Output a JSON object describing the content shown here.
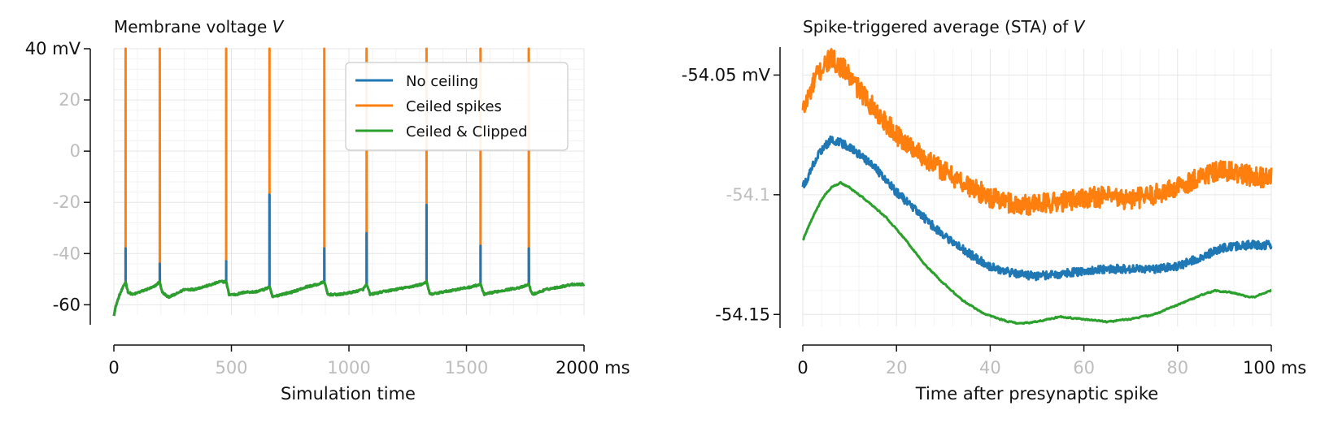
{
  "colors": {
    "no_ceiling": "#1f77b4",
    "ceiled_spikes": "#ff7f0e",
    "ceiled_clipped": "#2ca02c",
    "grid": "#e6e6e6",
    "minor_grid": "#f3f3f3",
    "tick_label_dim": "#bdbdbd",
    "text": "#111111"
  },
  "chart_data": [
    {
      "type": "line",
      "title": "Membrane voltage ",
      "title_var": "V",
      "xlabel": "Simulation time",
      "ylabel": "",
      "xlim": [
        0,
        2000
      ],
      "ylim": [
        -64,
        40
      ],
      "x_unit": "ms",
      "y_unit": "mV",
      "x_ticks": [
        {
          "value": 0,
          "label": "0",
          "dim": false
        },
        {
          "value": 500,
          "label": "500",
          "dim": true
        },
        {
          "value": 1000,
          "label": "1000",
          "dim": true
        },
        {
          "value": 1500,
          "label": "1500",
          "dim": true
        },
        {
          "value": 2000,
          "label": "2000 ms",
          "dim": false
        }
      ],
      "y_ticks": [
        {
          "value": 40,
          "label": "40 mV",
          "dim": false
        },
        {
          "value": 20,
          "label": "20",
          "dim": true
        },
        {
          "value": 0,
          "label": "0",
          "dim": true
        },
        {
          "value": -20,
          "label": "-20",
          "dim": true
        },
        {
          "value": -40,
          "label": "-40",
          "dim": true
        },
        {
          "value": -60,
          "label": "-60",
          "dim": false
        }
      ],
      "grid": true,
      "legend_position": "top-right",
      "spikes": [
        {
          "t": 50,
          "peak_no_ceiling": -38
        },
        {
          "t": 195,
          "peak_no_ceiling": -44
        },
        {
          "t": 478,
          "peak_no_ceiling": -43
        },
        {
          "t": 662,
          "peak_no_ceiling": -17
        },
        {
          "t": 895,
          "peak_no_ceiling": -38
        },
        {
          "t": 1075,
          "peak_no_ceiling": -32
        },
        {
          "t": 1330,
          "peak_no_ceiling": -21
        },
        {
          "t": 1560,
          "peak_no_ceiling": -37
        },
        {
          "t": 1765,
          "peak_no_ceiling": -38
        }
      ],
      "spike_ceiling": 40,
      "baseline": {
        "t": [
          0,
          10,
          25,
          40,
          50,
          60,
          80,
          110,
          140,
          170,
          195,
          205,
          230,
          260,
          300,
          340,
          380,
          420,
          450,
          478,
          490,
          520,
          560,
          600,
          640,
          662,
          675,
          710,
          760,
          820,
          870,
          895,
          910,
          960,
          1020,
          1060,
          1075,
          1090,
          1140,
          1200,
          1260,
          1310,
          1330,
          1345,
          1400,
          1460,
          1520,
          1560,
          1575,
          1620,
          1680,
          1740,
          1765,
          1780,
          1840,
          1900,
          1950,
          2000
        ],
        "v": [
          -64,
          -60,
          -56,
          -53,
          -51,
          -55,
          -56,
          -55,
          -54,
          -53,
          -51,
          -55,
          -57,
          -56,
          -54,
          -54,
          -53,
          -52,
          -51,
          -51,
          -56,
          -56,
          -55,
          -55,
          -54,
          -53,
          -57,
          -56,
          -55,
          -53,
          -52,
          -51,
          -56,
          -56,
          -55,
          -54,
          -52,
          -56,
          -55,
          -54,
          -53,
          -52,
          -51,
          -56,
          -55,
          -54,
          -53,
          -52,
          -56,
          -55,
          -54,
          -53,
          -52,
          -56,
          -54,
          -53,
          -52,
          -52
        ]
      },
      "series": [
        {
          "name": "No ceiling",
          "color_key": "no_ceiling",
          "peak_field": "peak_no_ceiling"
        },
        {
          "name": "Ceiled spikes",
          "color_key": "ceiled_spikes",
          "peak_field": "ceiling"
        },
        {
          "name": "Ceiled & Clipped",
          "color_key": "ceiled_clipped",
          "peak_field": "clipped"
        }
      ]
    },
    {
      "type": "line",
      "title": "Spike-triggered average (STA) of ",
      "title_var": "V",
      "xlabel": "Time after presynaptic spike",
      "ylabel": "",
      "xlim": [
        0,
        100
      ],
      "ylim": [
        -54.155,
        -54.039
      ],
      "x_unit": "ms",
      "y_unit": "mV",
      "x_ticks": [
        {
          "value": 0,
          "label": "0",
          "dim": false
        },
        {
          "value": 20,
          "label": "20",
          "dim": true
        },
        {
          "value": 40,
          "label": "40",
          "dim": true
        },
        {
          "value": 60,
          "label": "60",
          "dim": true
        },
        {
          "value": 80,
          "label": "80",
          "dim": true
        },
        {
          "value": 100,
          "label": "100 ms",
          "dim": false
        }
      ],
      "y_ticks": [
        {
          "value": -54.05,
          "label": "-54.05 mV",
          "dim": false
        },
        {
          "value": -54.1,
          "label": "-54.1",
          "dim": true
        },
        {
          "value": -54.15,
          "label": "-54.15",
          "dim": false
        }
      ],
      "grid": true,
      "series": [
        {
          "name": "Ceiled spikes",
          "color_key": "ceiled_spikes",
          "noise": 0.0055,
          "x": [
            0,
            3,
            6,
            9,
            12,
            16,
            20,
            25,
            30,
            35,
            40,
            45,
            50,
            55,
            60,
            65,
            70,
            75,
            80,
            85,
            90,
            95,
            100
          ],
          "y": [
            -54.065,
            -54.05,
            -54.043,
            -54.048,
            -54.056,
            -54.066,
            -54.075,
            -54.083,
            -54.09,
            -54.096,
            -54.101,
            -54.104,
            -54.104,
            -54.103,
            -54.101,
            -54.101,
            -54.102,
            -54.1,
            -54.097,
            -54.092,
            -54.09,
            -54.092,
            -54.093
          ]
        },
        {
          "name": "No ceiling",
          "color_key": "no_ceiling",
          "noise": 0.0022,
          "x": [
            0,
            3,
            6,
            9,
            12,
            16,
            20,
            25,
            30,
            35,
            40,
            45,
            50,
            55,
            60,
            65,
            70,
            75,
            80,
            85,
            90,
            95,
            100
          ],
          "y": [
            -54.097,
            -54.084,
            -54.077,
            -54.079,
            -54.083,
            -54.09,
            -54.099,
            -54.108,
            -54.117,
            -54.124,
            -54.13,
            -54.133,
            -54.134,
            -54.133,
            -54.132,
            -54.131,
            -54.131,
            -54.131,
            -54.13,
            -54.126,
            -54.122,
            -54.121,
            -54.121
          ]
        },
        {
          "name": "Ceiled & Clipped",
          "color_key": "ceiled_clipped",
          "noise": 0.0005,
          "x": [
            0,
            2,
            4,
            6,
            8,
            10,
            14,
            18,
            22,
            26,
            30,
            34,
            38,
            42,
            46,
            50,
            55,
            60,
            65,
            70,
            75,
            80,
            85,
            88,
            92,
            96,
            100
          ],
          "y": [
            -54.119,
            -54.11,
            -54.102,
            -54.097,
            -54.095,
            -54.097,
            -54.103,
            -54.11,
            -54.119,
            -54.129,
            -54.137,
            -54.144,
            -54.149,
            -54.152,
            -54.154,
            -54.153,
            -54.151,
            -54.152,
            -54.153,
            -54.152,
            -54.15,
            -54.146,
            -54.142,
            -54.14,
            -54.141,
            -54.143,
            -54.14
          ]
        }
      ]
    }
  ]
}
